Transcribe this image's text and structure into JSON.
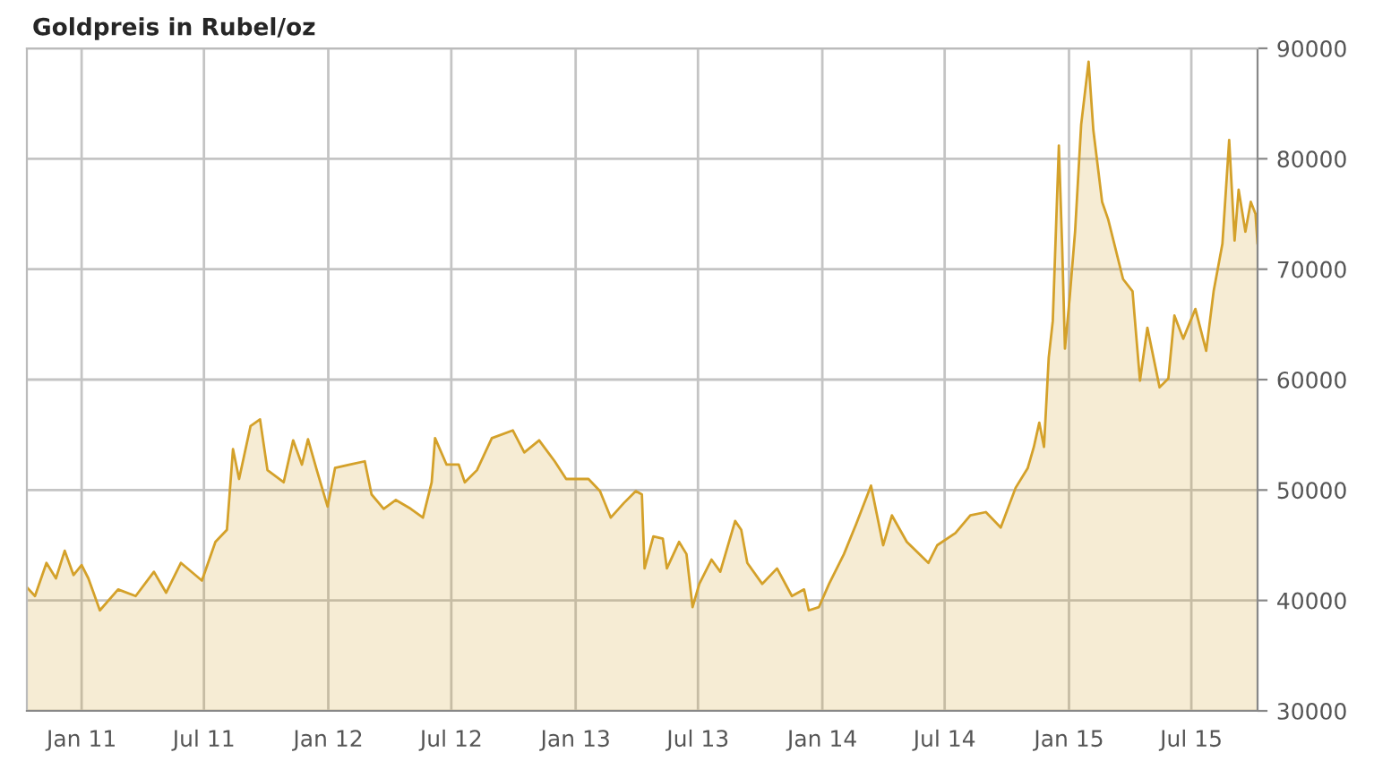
{
  "chart_data": {
    "type": "area",
    "title": "Goldpreis in Rubel/oz",
    "series": [
      {
        "color": "#d4a12a",
        "x": [
          "2010-10-12",
          "2010-10-24",
          "2010-11-10",
          "2010-11-24",
          "2010-12-07",
          "2010-12-20",
          "2011-01-01",
          "2011-01-11",
          "2011-01-28",
          "2011-02-24",
          "2011-03-22",
          "2011-04-18",
          "2011-05-06",
          "2011-05-28",
          "2011-06-28",
          "2011-07-18",
          "2011-08-04",
          "2011-08-13",
          "2011-08-22",
          "2011-09-08",
          "2011-09-22",
          "2011-10-03",
          "2011-10-27",
          "2011-11-10",
          "2011-11-23",
          "2011-12-02",
          "2011-12-15",
          "2011-12-31",
          "2012-01-11",
          "2012-02-02",
          "2012-02-24",
          "2012-03-05",
          "2012-03-23",
          "2012-04-10",
          "2012-05-02",
          "2012-05-20",
          "2012-06-02",
          "2012-06-07",
          "2012-06-24",
          "2012-07-12",
          "2012-07-21",
          "2012-08-08",
          "2012-08-30",
          "2012-09-30",
          "2012-10-17",
          "2012-11-08",
          "2012-12-01",
          "2012-12-18",
          "2013-01-20",
          "2013-02-06",
          "2013-02-22",
          "2013-03-13",
          "2013-03-31",
          "2013-04-09",
          "2013-04-13",
          "2013-04-26",
          "2013-05-10",
          "2013-05-16",
          "2013-06-03",
          "2013-06-14",
          "2013-06-23",
          "2013-07-03",
          "2013-07-21",
          "2013-08-03",
          "2013-08-25",
          "2013-09-03",
          "2013-09-12",
          "2013-10-04",
          "2013-10-26",
          "2013-11-17",
          "2013-12-05",
          "2013-12-12",
          "2013-12-27",
          "2014-01-11",
          "2014-02-02",
          "2014-02-20",
          "2014-03-14",
          "2014-04-01",
          "2014-04-14",
          "2014-05-06",
          "2014-06-07",
          "2014-06-20",
          "2014-07-17",
          "2014-08-08",
          "2014-08-31",
          "2014-09-22",
          "2014-10-14",
          "2014-11-01",
          "2014-11-10",
          "2014-11-18",
          "2014-11-25",
          "2014-12-02",
          "2014-12-08",
          "2014-12-17",
          "2014-12-22",
          "2014-12-26",
          "2015-01-02",
          "2015-01-10",
          "2015-01-19",
          "2015-01-30",
          "2015-02-06",
          "2015-02-19",
          "2015-02-28",
          "2015-03-09",
          "2015-03-22",
          "2015-04-05",
          "2015-04-16",
          "2015-04-27",
          "2015-05-15",
          "2015-05-28",
          "2015-06-06",
          "2015-06-19",
          "2015-07-07",
          "2015-07-23",
          "2015-08-03",
          "2015-08-16",
          "2015-08-26",
          "2015-09-03",
          "2015-09-09",
          "2015-09-19",
          "2015-09-27",
          "2015-10-04",
          "2015-10-07"
        ],
        "values": [
          41200,
          40400,
          43400,
          42000,
          44500,
          42300,
          43200,
          42000,
          39100,
          41000,
          40400,
          42600,
          40700,
          43400,
          41800,
          45300,
          46400,
          53700,
          51000,
          55800,
          56400,
          51800,
          50700,
          54500,
          52300,
          54600,
          51800,
          48500,
          52000,
          52300,
          52600,
          49600,
          48300,
          49100,
          48300,
          47500,
          50700,
          54700,
          52300,
          52300,
          50700,
          51800,
          54700,
          55400,
          53400,
          54500,
          52600,
          51000,
          51000,
          49900,
          47500,
          48800,
          49900,
          49600,
          42900,
          45800,
          45600,
          42900,
          45300,
          44200,
          39400,
          41500,
          43700,
          42600,
          47200,
          46400,
          43400,
          41500,
          42900,
          40400,
          41000,
          39100,
          39400,
          41500,
          44200,
          46900,
          50400,
          45000,
          47700,
          45300,
          43400,
          45000,
          46100,
          47700,
          48000,
          46600,
          50200,
          52000,
          53900,
          56100,
          53900,
          62000,
          65300,
          81200,
          71800,
          62800,
          67400,
          73400,
          83100,
          88800,
          82600,
          76100,
          74500,
          72300,
          69100,
          68000,
          59900,
          64700,
          59300,
          60100,
          65800,
          63700,
          66400,
          62600,
          68000,
          72300,
          81700,
          72600,
          77200,
          73400,
          76100,
          75000,
          72300
        ]
      }
    ],
    "xlim": [
      "2010-10-12",
      "2015-10-07"
    ],
    "xticks": [
      {
        "value": "2011-01-01",
        "label": "Jan 11"
      },
      {
        "value": "2011-07-01",
        "label": "Jul 11"
      },
      {
        "value": "2012-01-01",
        "label": "Jan 12"
      },
      {
        "value": "2012-07-01",
        "label": "Jul 12"
      },
      {
        "value": "2013-01-01",
        "label": "Jan 13"
      },
      {
        "value": "2013-07-01",
        "label": "Jul 13"
      },
      {
        "value": "2014-01-01",
        "label": "Jan 14"
      },
      {
        "value": "2014-07-01",
        "label": "Jul 14"
      },
      {
        "value": "2015-01-01",
        "label": "Jan 15"
      },
      {
        "value": "2015-07-01",
        "label": "Jul 15"
      }
    ],
    "ylim": [
      30000,
      90000
    ],
    "yticks": [
      30000,
      40000,
      50000,
      60000,
      70000,
      80000,
      90000
    ],
    "grid": true
  }
}
